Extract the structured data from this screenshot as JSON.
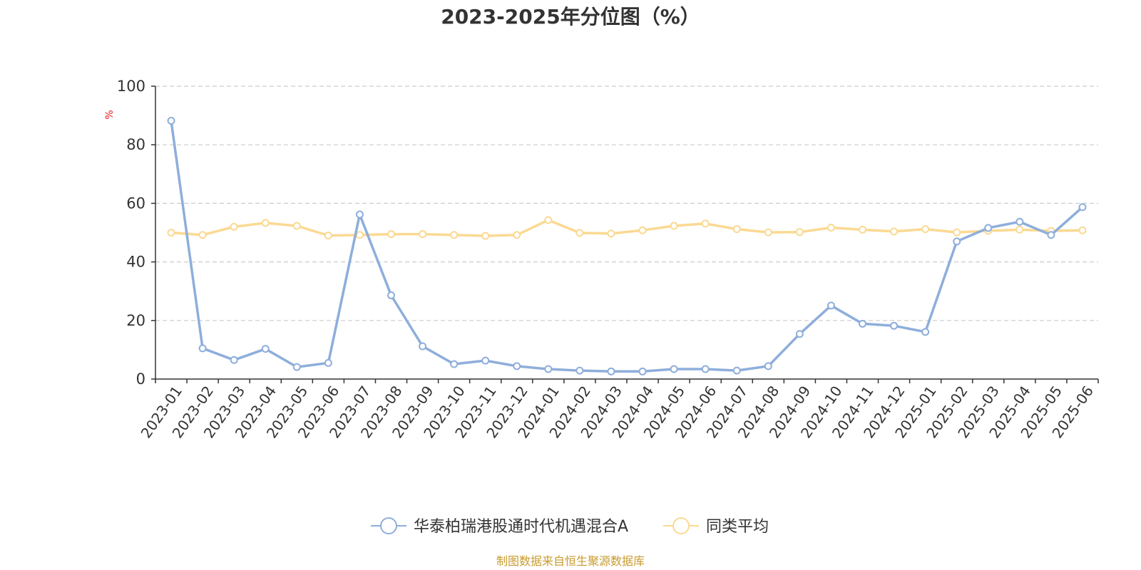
{
  "chart_data": {
    "type": "line",
    "title": "2023-2025年分位图（%）",
    "ylabel": "%",
    "ylim": [
      0,
      100
    ],
    "yticks": [
      0,
      20,
      40,
      60,
      80,
      100
    ],
    "grid": true,
    "legend_position": "bottom",
    "categories": [
      "2023-01",
      "2023-02",
      "2023-03",
      "2023-04",
      "2023-05",
      "2023-06",
      "2023-07",
      "2023-08",
      "2023-09",
      "2023-10",
      "2023-11",
      "2023-12",
      "2024-01",
      "2024-02",
      "2024-03",
      "2024-04",
      "2024-05",
      "2024-06",
      "2024-07",
      "2024-08",
      "2024-09",
      "2024-10",
      "2024-11",
      "2024-12",
      "2025-01",
      "2025-02",
      "2025-03",
      "2025-04",
      "2025-05",
      "2025-06"
    ],
    "series": [
      {
        "name": "华泰柏瑞港股通时代机遇混合A",
        "color": "#8eaedb",
        "values": [
          88.2,
          10.5,
          6.5,
          10.3,
          4.1,
          5.5,
          56.2,
          28.6,
          11.2,
          5.1,
          6.3,
          4.4,
          3.4,
          2.9,
          2.6,
          2.6,
          3.4,
          3.4,
          2.9,
          4.4,
          15.4,
          25.1,
          18.9,
          18.2,
          16.1,
          47.0,
          51.6,
          53.7,
          49.2,
          58.7
        ]
      },
      {
        "name": "同类平均",
        "color": "#fbd992",
        "values": [
          50.0,
          49.2,
          52.0,
          53.3,
          52.3,
          49.0,
          49.2,
          49.5,
          49.5,
          49.2,
          48.9,
          49.2,
          54.3,
          49.9,
          49.7,
          50.8,
          52.3,
          53.1,
          51.2,
          50.1,
          50.2,
          51.7,
          51.0,
          50.4,
          51.2,
          50.1,
          50.6,
          51.0,
          50.6,
          50.8
        ]
      }
    ]
  },
  "source_text": "制图数据来自恒生聚源数据库",
  "colors": {
    "axis": "#333333",
    "grid": "#cccccc",
    "unit_label": "#e41a1c",
    "source_text": "#c89b2f"
  }
}
